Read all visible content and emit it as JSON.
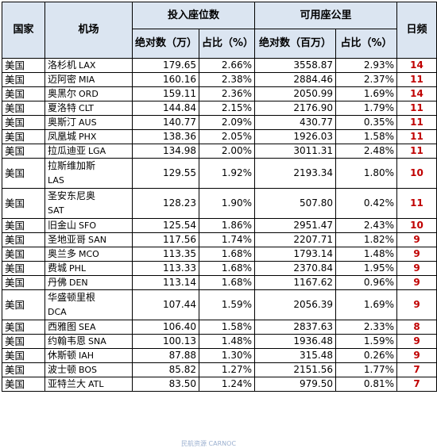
{
  "headers": {
    "country": "国家",
    "airport": "机场",
    "seats_group": "投入座位数",
    "ask_group": "可用座公里",
    "frequency": "日频",
    "seats_abs": "绝对数（万）",
    "seats_pct": "占比（%）",
    "ask_abs": "绝对数（百万）",
    "ask_pct": "占比（%）"
  },
  "rows": [
    {
      "country": "美国",
      "name": "洛杉机",
      "code": "LAX",
      "seats": "179.65",
      "seats_pct": "2.66%",
      "ask": "3558.87",
      "ask_pct": "2.93%",
      "freq": "14"
    },
    {
      "country": "美国",
      "name": "迈阿密",
      "code": "MIA",
      "seats": "160.16",
      "seats_pct": "2.38%",
      "ask": "2884.46",
      "ask_pct": "2.37%",
      "freq": "11"
    },
    {
      "country": "美国",
      "name": "奥黑尔",
      "code": "ORD",
      "seats": "159.11",
      "seats_pct": "2.36%",
      "ask": "2050.99",
      "ask_pct": "1.69%",
      "freq": "14"
    },
    {
      "country": "美国",
      "name": "夏洛特",
      "code": "CLT",
      "seats": "144.84",
      "seats_pct": "2.15%",
      "ask": "2176.90",
      "ask_pct": "1.79%",
      "freq": "11"
    },
    {
      "country": "美国",
      "name": "奥斯汀",
      "code": "AUS",
      "seats": "140.77",
      "seats_pct": "2.09%",
      "ask": "430.77",
      "ask_pct": "0.35%",
      "freq": "11"
    },
    {
      "country": "美国",
      "name": "凤凰城",
      "code": "PHX",
      "seats": "138.36",
      "seats_pct": "2.05%",
      "ask": "1926.03",
      "ask_pct": "1.58%",
      "freq": "11"
    },
    {
      "country": "美国",
      "name": "拉瓜迪亚",
      "code": "LGA",
      "seats": "134.98",
      "seats_pct": "2.00%",
      "ask": "3011.31",
      "ask_pct": "2.48%",
      "freq": "11"
    },
    {
      "country": "美国",
      "name": "拉斯维加斯",
      "code": "LAS",
      "seats": "129.55",
      "seats_pct": "1.92%",
      "ask": "2193.34",
      "ask_pct": "1.80%",
      "freq": "10",
      "wrap": true
    },
    {
      "country": "美国",
      "name": "圣安东尼奥",
      "code": "SAT",
      "seats": "128.23",
      "seats_pct": "1.90%",
      "ask": "507.80",
      "ask_pct": "0.42%",
      "freq": "11",
      "wrap": true
    },
    {
      "country": "美国",
      "name": "旧金山",
      "code": "SFO",
      "seats": "125.54",
      "seats_pct": "1.86%",
      "ask": "2951.47",
      "ask_pct": "2.43%",
      "freq": "10"
    },
    {
      "country": "美国",
      "name": "圣地亚哥",
      "code": "SAN",
      "seats": "117.56",
      "seats_pct": "1.74%",
      "ask": "2207.71",
      "ask_pct": "1.82%",
      "freq": "9"
    },
    {
      "country": "美国",
      "name": "奥兰多",
      "code": "MCO",
      "seats": "113.35",
      "seats_pct": "1.68%",
      "ask": "1793.14",
      "ask_pct": "1.48%",
      "freq": "9"
    },
    {
      "country": "美国",
      "name": "费城",
      "code": "PHL",
      "seats": "113.33",
      "seats_pct": "1.68%",
      "ask": "2370.84",
      "ask_pct": "1.95%",
      "freq": "9"
    },
    {
      "country": "美国",
      "name": "丹佛",
      "code": "DEN",
      "seats": "113.14",
      "seats_pct": "1.68%",
      "ask": "1167.62",
      "ask_pct": "0.96%",
      "freq": "9"
    },
    {
      "country": "美国",
      "name": "华盛顿里根",
      "code": "DCA",
      "seats": "107.44",
      "seats_pct": "1.59%",
      "ask": "2056.39",
      "ask_pct": "1.69%",
      "freq": "9",
      "wrap": true
    },
    {
      "country": "美国",
      "name": "西雅图",
      "code": "SEA",
      "seats": "106.40",
      "seats_pct": "1.58%",
      "ask": "2837.63",
      "ask_pct": "2.33%",
      "freq": "8"
    },
    {
      "country": "美国",
      "name": "约翰韦恩",
      "code": "SNA",
      "seats": "100.13",
      "seats_pct": "1.48%",
      "ask": "1936.48",
      "ask_pct": "1.59%",
      "freq": "9"
    },
    {
      "country": "美国",
      "name": "休斯顿",
      "code": "IAH",
      "seats": "87.88",
      "seats_pct": "1.30%",
      "ask": "315.48",
      "ask_pct": "0.26%",
      "freq": "9"
    },
    {
      "country": "美国",
      "name": "波士顿",
      "code": "BOS",
      "seats": "85.82",
      "seats_pct": "1.27%",
      "ask": "2151.56",
      "ask_pct": "1.77%",
      "freq": "7"
    },
    {
      "country": "美国",
      "name": "亚特兰大",
      "code": "ATL",
      "seats": "83.50",
      "seats_pct": "1.24%",
      "ask": "979.50",
      "ask_pct": "0.81%",
      "freq": "7"
    }
  ],
  "watermark": "民航资源 CARNOC",
  "colors": {
    "header_bg": "#dbe5f1",
    "frequency_text": "#c00000"
  }
}
